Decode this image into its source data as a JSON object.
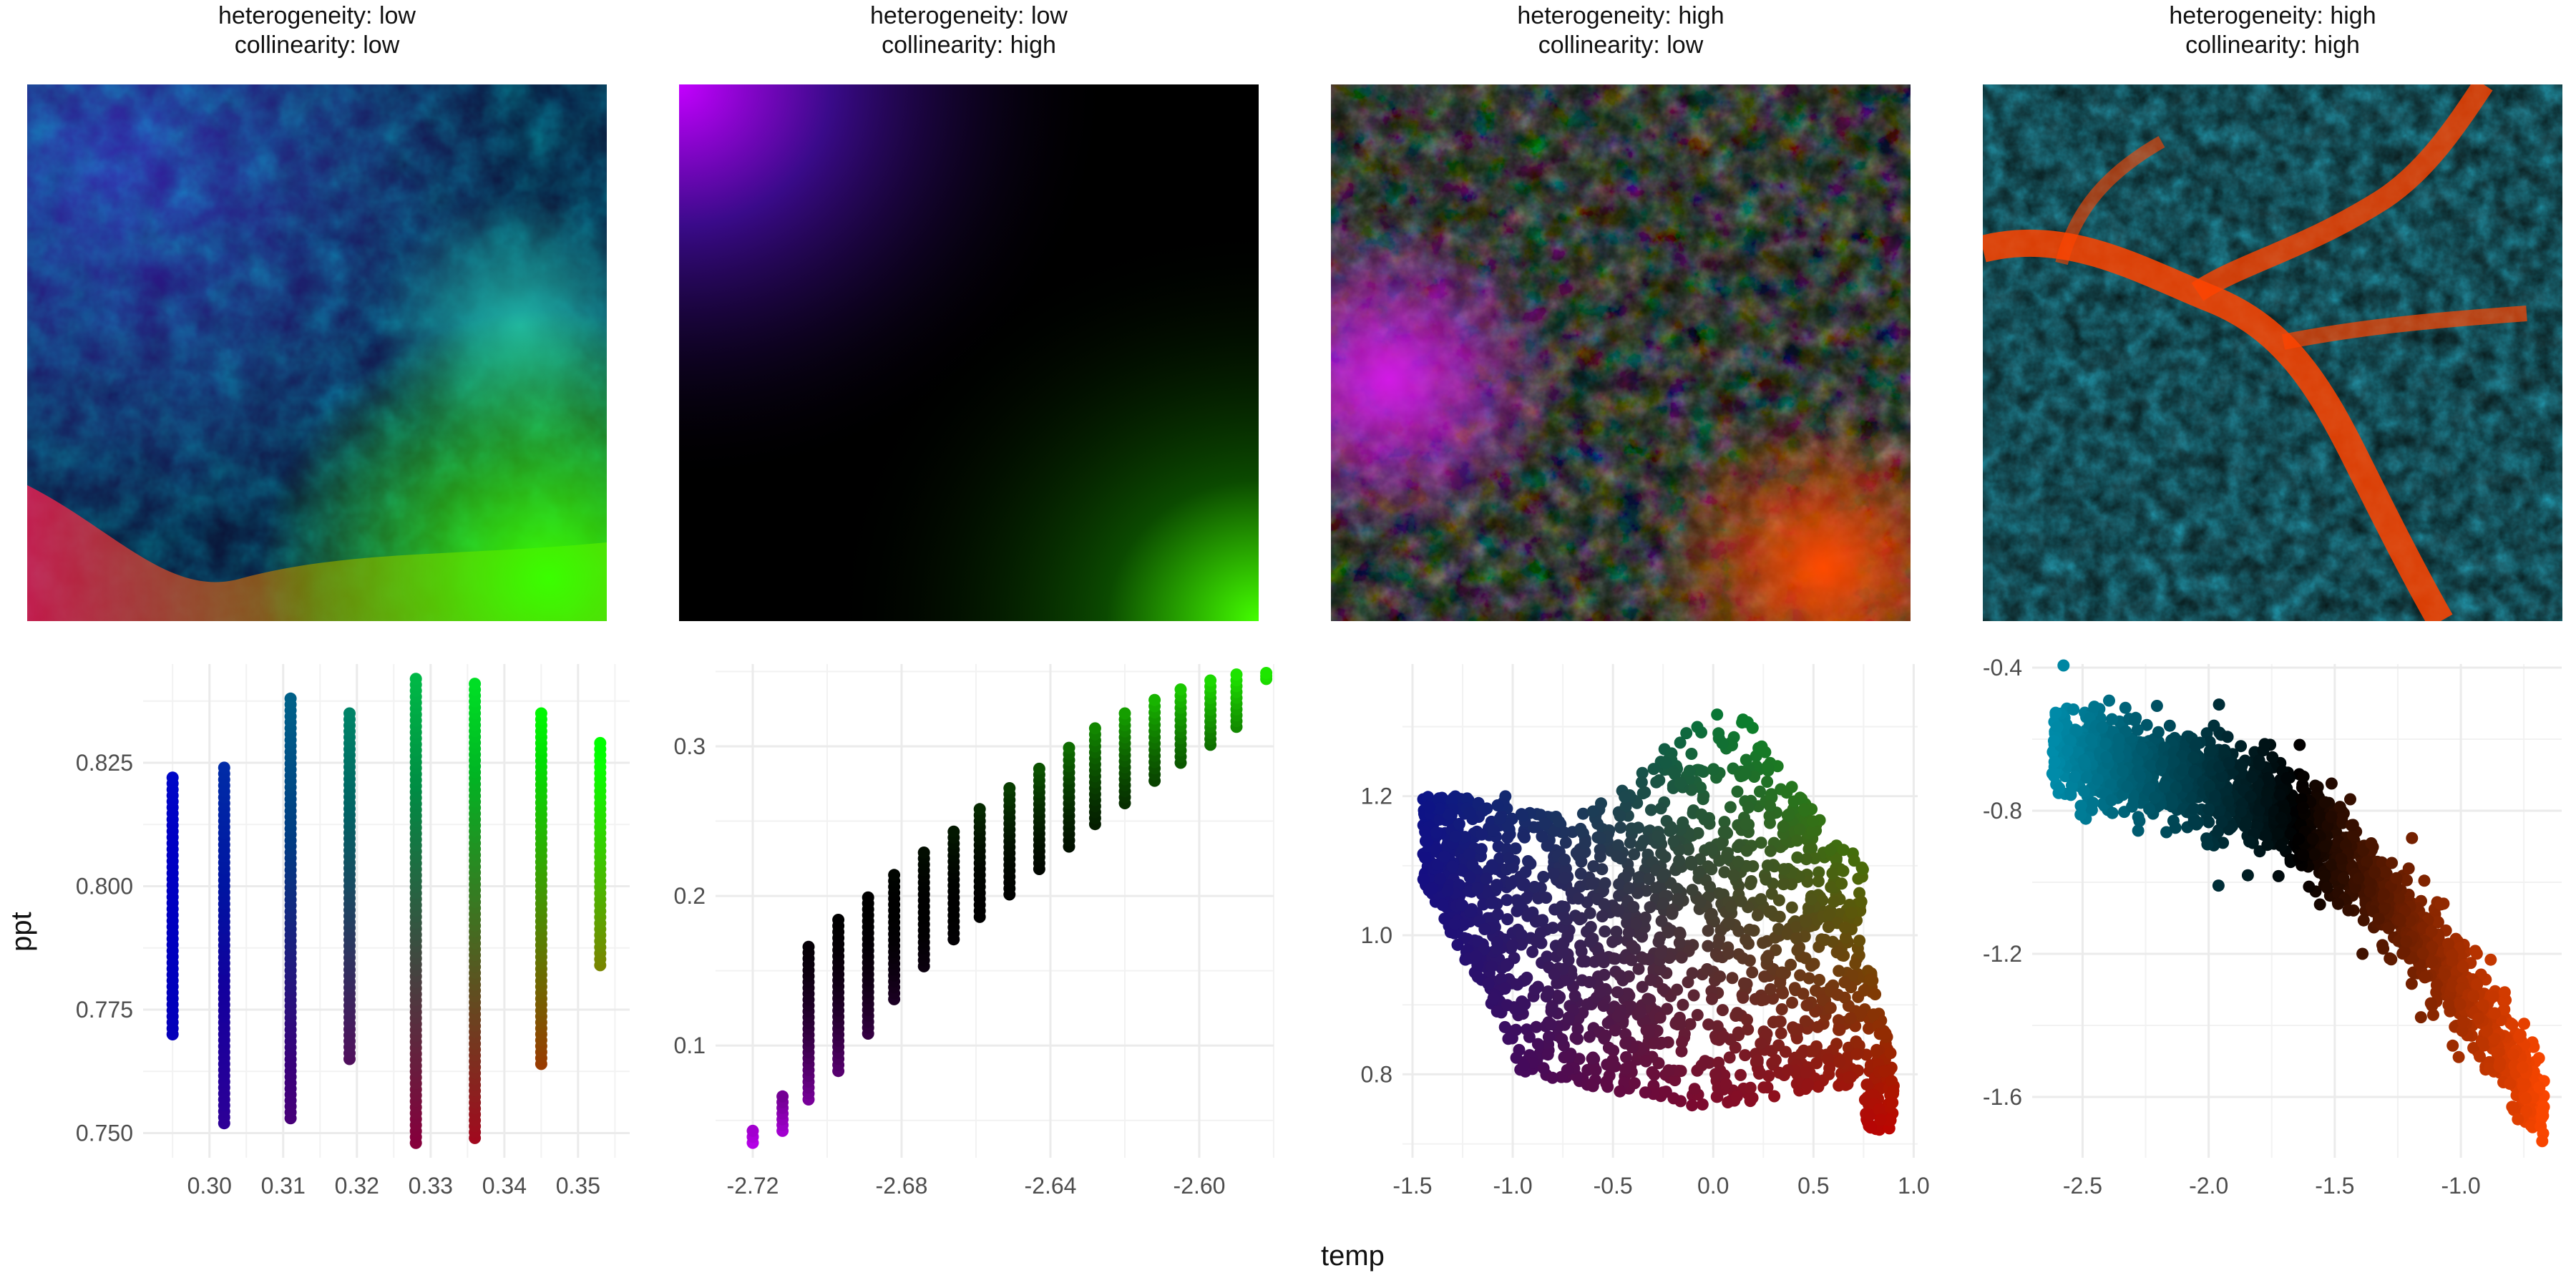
{
  "panels": [
    {
      "title_line1": "heterogeneity: low",
      "title_line2": "collinearity: low"
    },
    {
      "title_line1": "heterogeneity: low",
      "title_line2": "collinearity: high"
    },
    {
      "title_line1": "heterogeneity: high",
      "title_line2": "collinearity: low"
    },
    {
      "title_line1": "heterogeneity: high",
      "title_line2": "collinearity: high"
    }
  ],
  "axes": {
    "xlabel": "temp",
    "ylabel": "ppt"
  },
  "colors": {
    "temp": "#ff3300",
    "ppt": "#00cc00",
    "third": "#0055ff",
    "grid": "#ebebeb"
  },
  "chart_data": [
    {
      "type": "scatter",
      "xlabel": "temp",
      "ylabel": "ppt",
      "xlim": [
        0.291,
        0.357
      ],
      "ylim": [
        0.745,
        0.845
      ],
      "xticks": [
        0.3,
        0.31,
        0.32,
        0.33,
        0.34,
        0.35
      ],
      "xtick_labels": [
        "0.30",
        "0.31",
        "0.32",
        "0.33",
        "0.34",
        "0.35"
      ],
      "yticks": [
        0.75,
        0.775,
        0.8,
        0.825
      ],
      "ytick_labels": [
        "0.750",
        "0.775",
        "0.800",
        "0.825"
      ],
      "series": [
        {
          "x": 0.295,
          "ymin": 0.77,
          "ymax": 0.822
        },
        {
          "x": 0.302,
          "ymin": 0.752,
          "ymax": 0.824
        },
        {
          "x": 0.311,
          "ymin": 0.753,
          "ymax": 0.838
        },
        {
          "x": 0.319,
          "ymin": 0.765,
          "ymax": 0.835
        },
        {
          "x": 0.328,
          "ymin": 0.748,
          "ymax": 0.842
        },
        {
          "x": 0.336,
          "ymin": 0.749,
          "ymax": 0.841
        },
        {
          "x": 0.345,
          "ymin": 0.764,
          "ymax": 0.835
        },
        {
          "x": 0.353,
          "ymin": 0.784,
          "ymax": 0.829
        }
      ]
    },
    {
      "type": "scatter",
      "xlabel": "temp",
      "ylabel": "ppt",
      "xlim": [
        -2.73,
        -2.58
      ],
      "ylim": [
        0.025,
        0.355
      ],
      "xticks": [
        -2.72,
        -2.68,
        -2.64,
        -2.6
      ],
      "xtick_labels": [
        "-2.72",
        "-2.68",
        "-2.64",
        "-2.60"
      ],
      "yticks": [
        0.1,
        0.2,
        0.3
      ],
      "ytick_labels": [
        "0.1",
        "0.2",
        "0.3"
      ],
      "series": [
        {
          "x": -2.72,
          "ymin": 0.035,
          "ymax": 0.043
        },
        {
          "x": -2.712,
          "ymin": 0.043,
          "ymax": 0.066
        },
        {
          "x": -2.705,
          "ymin": 0.064,
          "ymax": 0.166
        },
        {
          "x": -2.697,
          "ymin": 0.083,
          "ymax": 0.184
        },
        {
          "x": -2.689,
          "ymin": 0.108,
          "ymax": 0.199
        },
        {
          "x": -2.682,
          "ymin": 0.131,
          "ymax": 0.214
        },
        {
          "x": -2.674,
          "ymin": 0.153,
          "ymax": 0.229
        },
        {
          "x": -2.666,
          "ymin": 0.171,
          "ymax": 0.243
        },
        {
          "x": -2.659,
          "ymin": 0.186,
          "ymax": 0.258
        },
        {
          "x": -2.651,
          "ymin": 0.201,
          "ymax": 0.272
        },
        {
          "x": -2.643,
          "ymin": 0.218,
          "ymax": 0.285
        },
        {
          "x": -2.635,
          "ymin": 0.233,
          "ymax": 0.299
        },
        {
          "x": -2.628,
          "ymin": 0.248,
          "ymax": 0.312
        },
        {
          "x": -2.62,
          "ymin": 0.262,
          "ymax": 0.322
        },
        {
          "x": -2.612,
          "ymin": 0.277,
          "ymax": 0.331
        },
        {
          "x": -2.605,
          "ymin": 0.289,
          "ymax": 0.338
        },
        {
          "x": -2.597,
          "ymin": 0.301,
          "ymax": 0.344
        },
        {
          "x": -2.59,
          "ymin": 0.313,
          "ymax": 0.348
        },
        {
          "x": -2.582,
          "ymin": 0.345,
          "ymax": 0.349
        }
      ]
    },
    {
      "type": "scatter",
      "xlabel": "temp",
      "ylabel": "ppt",
      "xlim": [
        -1.55,
        1.02
      ],
      "ylim": [
        0.68,
        1.39
      ],
      "xticks": [
        -1.5,
        -1.0,
        -0.5,
        0.0,
        0.5,
        1.0
      ],
      "xtick_labels": [
        "-1.5",
        "-1.0",
        "-0.5",
        "0.0",
        "0.5",
        "1.0"
      ],
      "yticks": [
        0.8,
        1.0,
        1.2
      ],
      "ytick_labels": [
        "0.8",
        "1.0",
        "1.2"
      ]
    },
    {
      "type": "scatter",
      "xlabel": "temp",
      "ylabel": "ppt",
      "xlim": [
        -2.7,
        -0.6
      ],
      "ylim": [
        -1.77,
        -0.39
      ],
      "xticks": [
        -2.5,
        -2.0,
        -1.5,
        -1.0
      ],
      "xtick_labels": [
        "-2.5",
        "-2.0",
        "-1.5",
        "-1.0"
      ],
      "yticks": [
        -0.4,
        -0.8,
        -1.2,
        -1.6
      ],
      "ytick_labels": [
        "-0.4",
        "-0.8",
        "-1.2",
        "-1.6"
      ]
    }
  ]
}
